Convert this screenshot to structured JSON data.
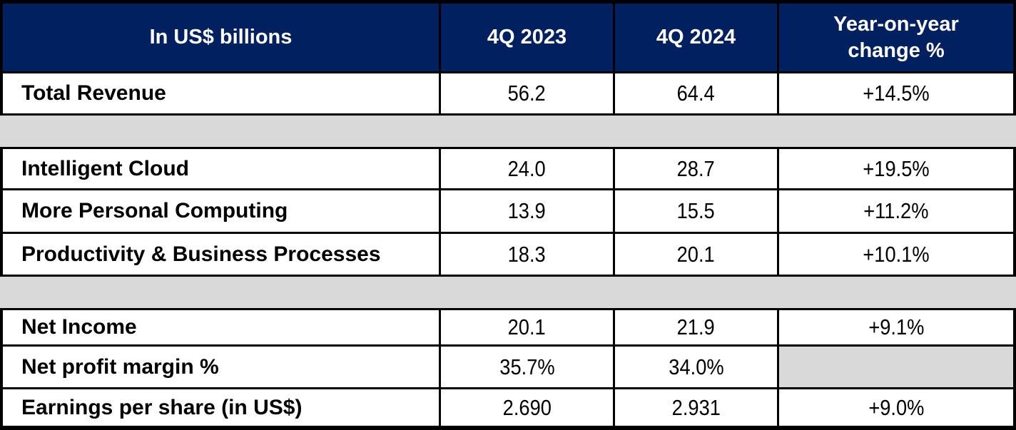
{
  "title": "Quarterly financial results table",
  "unit_note": "In US$ billions",
  "header": {
    "metric": "In US$ billions",
    "q4_2023": "4Q 2023",
    "q4_2024": "4Q 2024",
    "yoy": "Year-on-year change %"
  },
  "rows": [
    {
      "type": "data",
      "label": "Total Revenue",
      "v1": "56.2",
      "v2": "64.4",
      "yoy": "+14.5%"
    },
    {
      "type": "spacer"
    },
    {
      "type": "data",
      "label": "Intelligent Cloud",
      "v1": "24.0",
      "v2": "28.7",
      "yoy": "+19.5%"
    },
    {
      "type": "data",
      "label": "More Personal Computing",
      "v1": "13.9",
      "v2": "15.5",
      "yoy": "+11.2%"
    },
    {
      "type": "data",
      "label": "Productivity & Business Processes",
      "v1": "18.3",
      "v2": "20.1",
      "yoy": "+10.1%"
    },
    {
      "type": "spacer"
    },
    {
      "type": "data",
      "label": "Net Income",
      "v1": "20.1",
      "v2": "21.9",
      "yoy": "+9.1%"
    },
    {
      "type": "data",
      "label": "Net profit margin %",
      "v1": "35.7%",
      "v2": "34.0%",
      "yoy": ""
    },
    {
      "type": "data",
      "label": "Earnings per share (in US$)",
      "v1": "2.690",
      "v2": "2.931",
      "yoy": "+9.0%"
    }
  ],
  "colors": {
    "header_background": "#002060",
    "header_text": "#FFFFFF",
    "spacer_background": "#D9D9D9",
    "border": "#000000",
    "body_text": "#000000",
    "row_background": "#FFFFFF"
  },
  "chart_data": {
    "type": "table",
    "title": "In US$ billions",
    "columns": [
      "In US$ billions",
      "4Q 2023",
      "4Q 2024",
      "Year-on-year change %"
    ],
    "rows": [
      [
        "Total Revenue",
        "56.2",
        "64.4",
        "+14.5%"
      ],
      [
        "Intelligent Cloud",
        "24.0",
        "28.7",
        "+19.5%"
      ],
      [
        "More Personal Computing",
        "13.9",
        "15.5",
        "+11.2%"
      ],
      [
        "Productivity & Business Processes",
        "18.3",
        "20.1",
        "+10.1%"
      ],
      [
        "Net Income",
        "20.1",
        "21.9",
        "+9.1%"
      ],
      [
        "Net profit margin %",
        "35.7%",
        "34.0%",
        ""
      ],
      [
        "Earnings per share (in US$)",
        "2.690",
        "2.931",
        "+9.0%"
      ]
    ]
  }
}
